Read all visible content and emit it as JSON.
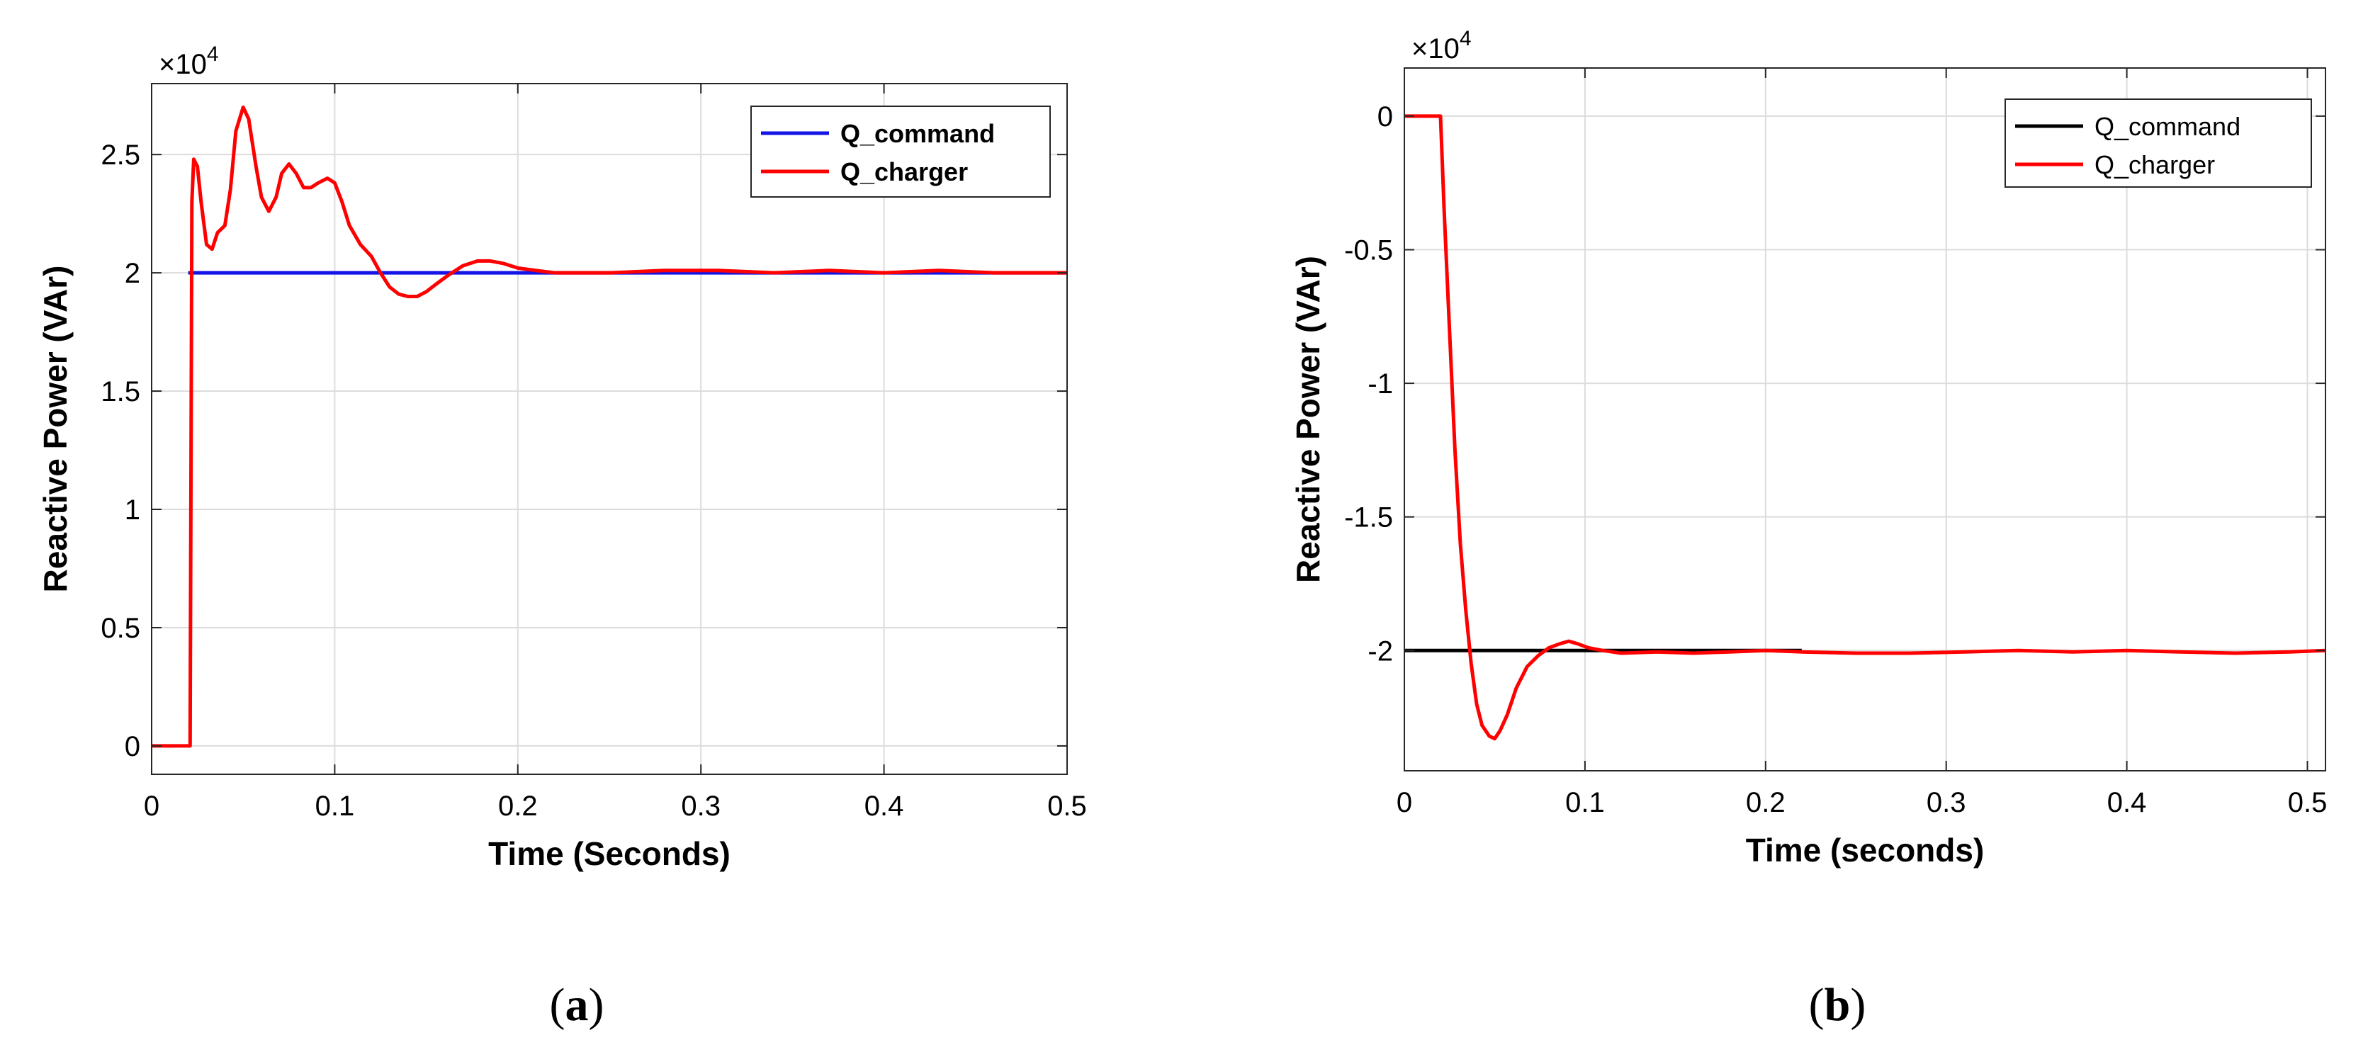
{
  "chart_data": [
    {
      "type": "line",
      "panel_label": "(a)",
      "xlabel": "Time (Seconds)",
      "ylabel": "Reactive Power (VAr)",
      "exponent_label": "×10",
      "exponent_power": "4",
      "xlim": [
        0,
        0.5
      ],
      "ylim": [
        -0.12,
        2.8
      ],
      "x_ticks": [
        0,
        0.1,
        0.2,
        0.3,
        0.4,
        0.5
      ],
      "x_tick_labels": [
        "0",
        "0.1",
        "0.2",
        "0.3",
        "0.4",
        "0.5"
      ],
      "y_ticks": [
        0,
        0.5,
        1,
        1.5,
        2,
        2.5
      ],
      "y_tick_labels": [
        "0",
        "0.5",
        "1",
        "1.5",
        "2",
        "2.5"
      ],
      "grid": true,
      "legend_position": "top-right",
      "series": [
        {
          "name": "Q_command",
          "color": "#1414e6",
          "points": [
            [
              0.02,
              2.0
            ],
            [
              0.5,
              2.0
            ]
          ]
        },
        {
          "name": "Q_charger",
          "color": "#ff0000",
          "points": [
            [
              0,
              0
            ],
            [
              0.019,
              0
            ],
            [
              0.021,
              0
            ],
            [
              0.022,
              2.3
            ],
            [
              0.023,
              2.48
            ],
            [
              0.025,
              2.45
            ],
            [
              0.027,
              2.3
            ],
            [
              0.03,
              2.12
            ],
            [
              0.033,
              2.1
            ],
            [
              0.036,
              2.17
            ],
            [
              0.04,
              2.2
            ],
            [
              0.043,
              2.35
            ],
            [
              0.046,
              2.6
            ],
            [
              0.05,
              2.7
            ],
            [
              0.053,
              2.65
            ],
            [
              0.057,
              2.45
            ],
            [
              0.06,
              2.32
            ],
            [
              0.064,
              2.26
            ],
            [
              0.068,
              2.32
            ],
            [
              0.071,
              2.42
            ],
            [
              0.075,
              2.46
            ],
            [
              0.079,
              2.42
            ],
            [
              0.083,
              2.36
            ],
            [
              0.087,
              2.36
            ],
            [
              0.091,
              2.38
            ],
            [
              0.096,
              2.4
            ],
            [
              0.1,
              2.38
            ],
            [
              0.104,
              2.3
            ],
            [
              0.108,
              2.2
            ],
            [
              0.114,
              2.12
            ],
            [
              0.12,
              2.07
            ],
            [
              0.125,
              2.0
            ],
            [
              0.13,
              1.94
            ],
            [
              0.135,
              1.91
            ],
            [
              0.14,
              1.9
            ],
            [
              0.145,
              1.9
            ],
            [
              0.15,
              1.92
            ],
            [
              0.155,
              1.95
            ],
            [
              0.162,
              1.99
            ],
            [
              0.17,
              2.03
            ],
            [
              0.178,
              2.05
            ],
            [
              0.185,
              2.05
            ],
            [
              0.192,
              2.04
            ],
            [
              0.2,
              2.02
            ],
            [
              0.21,
              2.01
            ],
            [
              0.22,
              2.0
            ],
            [
              0.23,
              2.0
            ],
            [
              0.25,
              2.0
            ],
            [
              0.28,
              2.01
            ],
            [
              0.31,
              2.01
            ],
            [
              0.34,
              2.0
            ],
            [
              0.37,
              2.01
            ],
            [
              0.4,
              2.0
            ],
            [
              0.43,
              2.01
            ],
            [
              0.46,
              2.0
            ],
            [
              0.5,
              2.0
            ]
          ]
        }
      ]
    },
    {
      "type": "line",
      "panel_label": "(b)",
      "xlabel": "Time (seconds)",
      "ylabel": "Reactive Power (VAr)",
      "exponent_label": "×10",
      "exponent_power": "4",
      "xlim": [
        0,
        0.51
      ],
      "ylim": [
        -2.45,
        0.18
      ],
      "x_ticks": [
        0,
        0.1,
        0.2,
        0.3,
        0.4,
        0.5
      ],
      "x_tick_labels": [
        "0",
        "0.1",
        "0.2",
        "0.3",
        "0.4",
        "0.5"
      ],
      "y_ticks": [
        0,
        -0.5,
        -1,
        -1.5,
        -2
      ],
      "y_tick_labels": [
        "0",
        "-0.5",
        "-1",
        "-1.5",
        "-2"
      ],
      "grid": true,
      "legend_position": "top-right",
      "series": [
        {
          "name": "Q_command",
          "color": "#000000",
          "points": [
            [
              0,
              -2.0
            ],
            [
              0.22,
              -2.0
            ]
          ]
        },
        {
          "name": "Q_charger",
          "color": "#ff0000",
          "points": [
            [
              0,
              0
            ],
            [
              0.02,
              0
            ],
            [
              0.022,
              -0.35
            ],
            [
              0.025,
              -0.8
            ],
            [
              0.028,
              -1.25
            ],
            [
              0.031,
              -1.6
            ],
            [
              0.034,
              -1.85
            ],
            [
              0.037,
              -2.05
            ],
            [
              0.04,
              -2.2
            ],
            [
              0.043,
              -2.28
            ],
            [
              0.047,
              -2.32
            ],
            [
              0.05,
              -2.33
            ],
            [
              0.053,
              -2.3
            ],
            [
              0.057,
              -2.24
            ],
            [
              0.062,
              -2.14
            ],
            [
              0.068,
              -2.06
            ],
            [
              0.074,
              -2.02
            ],
            [
              0.08,
              -1.99
            ],
            [
              0.086,
              -1.975
            ],
            [
              0.091,
              -1.965
            ],
            [
              0.096,
              -1.975
            ],
            [
              0.102,
              -1.99
            ],
            [
              0.11,
              -2.0
            ],
            [
              0.12,
              -2.01
            ],
            [
              0.14,
              -2.005
            ],
            [
              0.16,
              -2.01
            ],
            [
              0.18,
              -2.005
            ],
            [
              0.2,
              -2.0
            ],
            [
              0.22,
              -2.005
            ],
            [
              0.25,
              -2.01
            ],
            [
              0.28,
              -2.01
            ],
            [
              0.31,
              -2.005
            ],
            [
              0.34,
              -2.0
            ],
            [
              0.37,
              -2.005
            ],
            [
              0.4,
              -2.0
            ],
            [
              0.43,
              -2.005
            ],
            [
              0.46,
              -2.01
            ],
            [
              0.49,
              -2.005
            ],
            [
              0.51,
              -2.0
            ]
          ]
        }
      ]
    }
  ]
}
